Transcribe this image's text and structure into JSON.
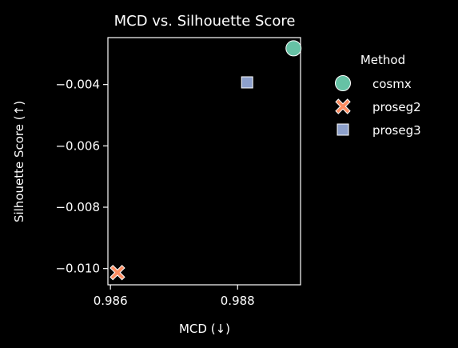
{
  "chart_data": {
    "type": "scatter",
    "title": "MCD vs. Silhouette Score",
    "xlabel": "MCD (↓)",
    "ylabel": "Silhouette Score (↑)",
    "xlim": [
      0.98596,
      0.98899
    ],
    "ylim": [
      -0.01053,
      -0.00247
    ],
    "xticks": [
      {
        "value": 0.986,
        "label": "0.986"
      },
      {
        "value": 0.988,
        "label": "0.988"
      }
    ],
    "yticks": [
      {
        "value": -0.004,
        "label": "−0.004"
      },
      {
        "value": -0.006,
        "label": "−0.006"
      },
      {
        "value": -0.008,
        "label": "−0.008"
      },
      {
        "value": -0.01,
        "label": "−0.010"
      }
    ],
    "grid": false,
    "legend": {
      "title": "Method",
      "placement": "outside-right"
    },
    "series": [
      {
        "name": "cosmx",
        "marker": "circle",
        "color": "#66c2a5",
        "points": [
          {
            "x": 0.98888,
            "y": -0.00282
          }
        ]
      },
      {
        "name": "proseg2",
        "marker": "x",
        "color": "#fc8d62",
        "points": [
          {
            "x": 0.98611,
            "y": -0.01013
          }
        ]
      },
      {
        "name": "proseg3",
        "marker": "square",
        "color": "#8da0cb",
        "points": [
          {
            "x": 0.98815,
            "y": -0.00393
          }
        ]
      }
    ]
  }
}
